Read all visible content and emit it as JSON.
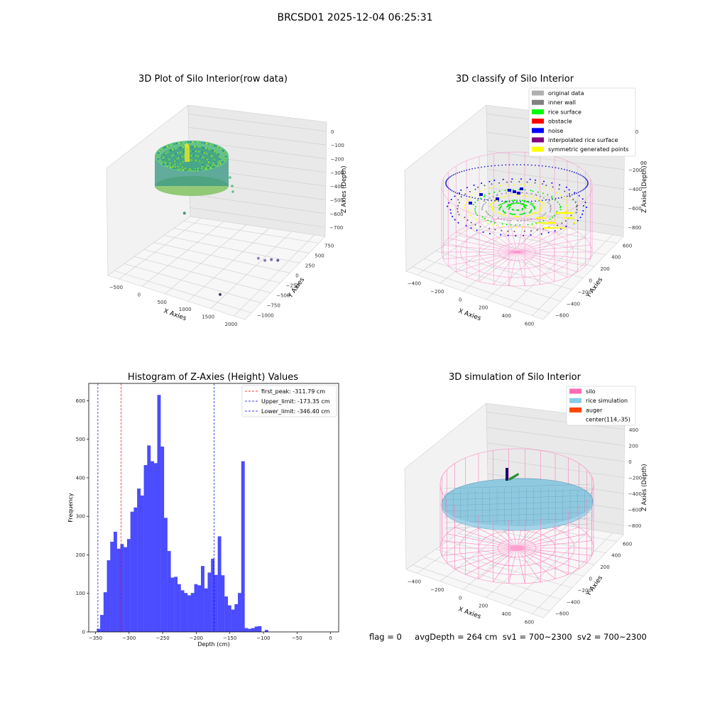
{
  "figure": {
    "suptitle": "BRCSD01 2025-12-04 06:25:31",
    "status": {
      "flag": "flag = 0",
      "avg_depth": "avgDepth = 264 cm",
      "sv1": "sv1 = 700~2300",
      "sv2": "sv2 = 700~2300"
    }
  },
  "chart_data": [
    {
      "type": "scatter",
      "projection": "3d",
      "title": "3D Plot of Silo Interior(row data)",
      "xlabel": "X Axies",
      "ylabel": "Y Axies",
      "zlabel": "Z Axies (Depth)",
      "x_ticks": [
        "−500",
        "0",
        "500",
        "1000",
        "1500",
        "2000"
      ],
      "y_ticks": [
        "−1000",
        "−750",
        "−500",
        "−250",
        "0",
        "250",
        "500",
        "750"
      ],
      "z_ticks": [
        "0",
        "−100",
        "−200",
        "−300",
        "−400",
        "−500",
        "−600",
        "−700"
      ],
      "colormap": "viridis",
      "outlier_points": [
        {
          "x": 1700,
          "y": -200,
          "z": -560
        },
        {
          "x": 1750,
          "y": -100,
          "z": -590
        },
        {
          "x": 1800,
          "y": 0,
          "z": -600
        },
        {
          "x": 1850,
          "y": 100,
          "z": -620
        },
        {
          "x": 1500,
          "y": -900,
          "z": -690
        },
        {
          "x": -300,
          "y": 300,
          "z": -560
        }
      ]
    },
    {
      "type": "scatter",
      "projection": "3d",
      "title": "3D classify of Silo Interior",
      "xlabel": "X Axies",
      "ylabel": "Y Axies",
      "zlabel": "Z Axies (Depth)",
      "x_ticks": [
        "−400",
        "−200",
        "0",
        "200",
        "400",
        "600"
      ],
      "y_ticks": [
        "−600",
        "−400",
        "−200",
        "0",
        "200",
        "400",
        "600"
      ],
      "z_ticks": [
        "200",
        "0",
        "−200",
        "−400",
        "−600",
        "−800"
      ],
      "z_ticks_partial": [
        "00"
      ],
      "legend_position": "top-right",
      "legend": [
        {
          "label": "original data",
          "color": "#b0b0b0"
        },
        {
          "label": "inner wall",
          "color": "#808080"
        },
        {
          "label": "rice surface",
          "color": "#00ff00"
        },
        {
          "label": "obstacle",
          "color": "#ff0000"
        },
        {
          "label": "noise",
          "color": "#0000ff"
        },
        {
          "label": "interpolated rice surface",
          "color": "#800080"
        },
        {
          "label": "symmetric generated points",
          "color": "#ffff00"
        }
      ]
    },
    {
      "type": "bar",
      "title": "Histogram of Z-Axies (Height) Values",
      "xlabel": "Depth (cm)",
      "ylabel": "Frequency",
      "xlim": [
        -360,
        12
      ],
      "ylim": [
        0,
        645
      ],
      "x_ticks": [
        -350,
        -300,
        -250,
        -200,
        -150,
        -100,
        -50,
        0
      ],
      "y_ticks": [
        0,
        100,
        200,
        300,
        400,
        500,
        600
      ],
      "bin_width": 5,
      "bar_color": "#4b4bff",
      "bin_starts": [
        -348,
        -343,
        -338,
        -333,
        -328,
        -323,
        -318,
        -313,
        -308,
        -303,
        -298,
        -293,
        -288,
        -283,
        -278,
        -273,
        -268,
        -263,
        -258,
        -253,
        -248,
        -243,
        -238,
        -233,
        -228,
        -223,
        -218,
        -213,
        -208,
        -203,
        -198,
        -193,
        -188,
        -183,
        -178,
        -173,
        -168,
        -163,
        -158,
        -153,
        -148,
        -143,
        -138,
        -133,
        -128,
        -123,
        -118,
        -113,
        -108,
        -103,
        -98,
        -93,
        -88,
        -83,
        -78,
        -73,
        -68,
        -63,
        -58,
        -53,
        -48,
        -43,
        -38,
        -33,
        -28,
        -23,
        -18,
        -13,
        -8,
        -3
      ],
      "values": [
        8,
        44,
        103,
        186,
        234,
        260,
        216,
        228,
        220,
        241,
        312,
        323,
        372,
        354,
        433,
        484,
        443,
        438,
        615,
        481,
        296,
        210,
        141,
        143,
        124,
        108,
        101,
        95,
        101,
        124,
        121,
        171,
        113,
        154,
        190,
        148,
        248,
        147,
        92,
        69,
        58,
        72,
        101,
        443,
        10,
        8,
        10,
        14,
        15,
        0,
        5,
        0,
        0,
        0,
        0,
        0,
        0,
        0,
        0,
        0,
        0,
        0,
        0,
        0,
        0,
        0,
        0,
        0,
        0,
        0
      ],
      "vlines": [
        {
          "label": "first_peak: -311.79 cm",
          "x": -311.79,
          "color": "#ff0000"
        },
        {
          "label": "Upper_limit: -173.35 cm",
          "x": -173.35,
          "color": "#0000ff"
        },
        {
          "label": "Lower_limit: -346.40 cm",
          "x": -346.4,
          "color": "#0000ff"
        }
      ],
      "legend_position": "top-right"
    },
    {
      "type": "surface",
      "projection": "3d",
      "title": "3D simulation of Silo Interior",
      "xlabel": "X Axies",
      "ylabel": "Y Axies",
      "zlabel": "Z Axies (Depth)",
      "x_ticks": [
        "−400",
        "−200",
        "0",
        "200",
        "400",
        "600"
      ],
      "y_ticks": [
        "−600",
        "−400",
        "−200",
        "0",
        "200",
        "400",
        "600"
      ],
      "z_ticks": [
        "400",
        "200",
        "0",
        "−200",
        "−400",
        "−600",
        "−800"
      ],
      "legend_position": "top-right",
      "legend": [
        {
          "label": "silo",
          "color": "#ff69b4"
        },
        {
          "label": "rice simulation",
          "color": "#87ceeb"
        },
        {
          "label": "auger",
          "color": "#ff4500"
        },
        {
          "label": "center(114,-35)",
          "color": ""
        }
      ]
    }
  ]
}
